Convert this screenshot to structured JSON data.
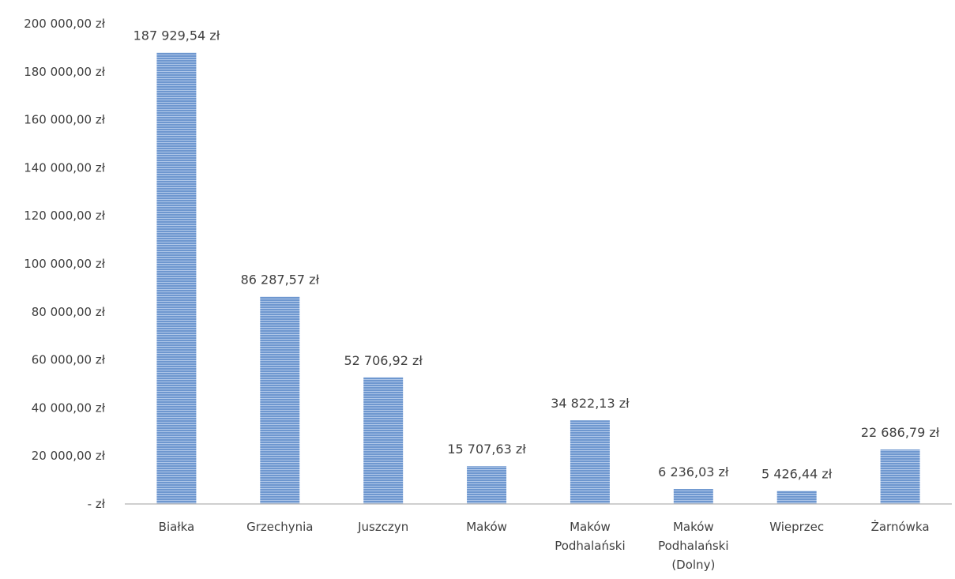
{
  "chart_data": {
    "type": "bar",
    "title": "",
    "xlabel": "",
    "ylabel": "",
    "categories": [
      [
        "Białka"
      ],
      [
        "Grzechynia"
      ],
      [
        "Juszczyn"
      ],
      [
        "Maków"
      ],
      [
        "Maków",
        "Podhalański"
      ],
      [
        "Maków",
        "Podhalański",
        "(Dolny)"
      ],
      [
        "Wieprzec"
      ],
      [
        "Żarnówka"
      ]
    ],
    "values": [
      187929.54,
      86287.57,
      52706.92,
      15707.63,
      34822.13,
      6236.03,
      5426.44,
      22686.79
    ],
    "value_labels": [
      "187 929,54 zł",
      "86 287,57 zł",
      "52 706,92 zł",
      "15 707,63 zł",
      "34 822,13 zł",
      "6 236,03 zł",
      "5 426,44 zł",
      "22 686,79 zł"
    ],
    "ylim": [
      0,
      200000
    ],
    "yticks": [
      0,
      20000,
      40000,
      60000,
      80000,
      100000,
      120000,
      140000,
      160000,
      180000,
      200000
    ],
    "ytick_labels": [
      "-  zł",
      "20 000,00 zł",
      "40 000,00 zł",
      "60 000,00 zł",
      "80 000,00 zł",
      "100 000,00 zł",
      "120 000,00 zł",
      "140 000,00 zł",
      "160 000,00 zł",
      "180 000,00 zł",
      "200 000,00 zł"
    ],
    "grid": false,
    "legend": "none",
    "colors": {
      "bar_fill": "#6e97cf",
      "bar_stripe": "#aec6e8",
      "axis": "#bfbfbf",
      "text": "#404040"
    }
  }
}
